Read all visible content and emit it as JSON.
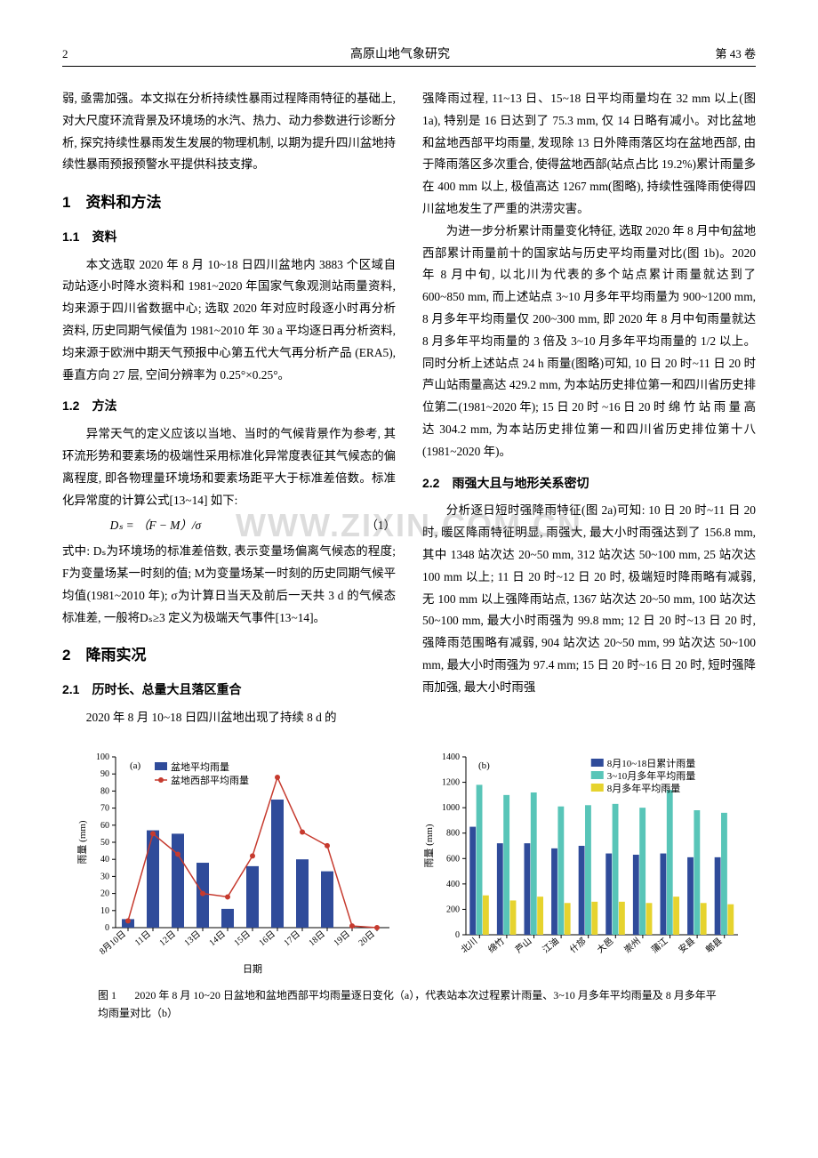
{
  "header": {
    "page_num": "2",
    "journal": "高原山地气象研究",
    "volume": "第 43 卷"
  },
  "left": {
    "p1": "弱, 亟需加强。本文拟在分析持续性暴雨过程降雨特征的基础上, 对大尺度环流背景及环境场的水汽、热力、动力参数进行诊断分析, 探究持续性暴雨发生发展的物理机制, 以期为提升四川盆地持续性暴雨预报预警水平提供科技支撑。",
    "s1_title": "1　资料和方法",
    "s11_title": "1.1　资料",
    "p2": "本文选取 2020 年 8 月 10~18 日四川盆地内 3883 个区域自动站逐小时降水资料和 1981~2020 年国家气象观测站雨量资料, 均来源于四川省数据中心; 选取 2020 年对应时段逐小时再分析资料, 历史同期气候值为 1981~2010 年 30 a 平均逐日再分析资料, 均来源于欧洲中期天气预报中心第五代大气再分析产品 (ERA5), 垂直方向 27 层, 空间分辨率为 0.25°×0.25°。",
    "s12_title": "1.2　方法",
    "p3": "异常天气的定义应该以当地、当时的气候背景作为参考, 其环流形势和要素场的极端性采用标准化异常度表征其气候态的偏离程度, 即各物理量环境场和要素场距平大于标准差倍数。标准化异常度的计算公式[13~14] 如下:",
    "formula_eq": "Dₛ = （F − M）/σ",
    "formula_num": "（1）",
    "p4": "式中: Dₛ为环境场的标准差倍数, 表示变量场偏离气候态的程度; F为变量场某一时刻的值; M为变量场某一时刻的历史同期气候平均值(1981~2010 年); σ为计算日当天及前后一天共 3 d 的气候态标准差, 一般将Dₛ≥3 定义为极端天气事件[13~14]。",
    "s2_title": "2　降雨实况",
    "s21_title": "2.1　历时长、总量大且落区重合",
    "p5": "2020 年 8 月 10~18 日四川盆地出现了持续 8 d 的"
  },
  "right": {
    "p1": "强降雨过程, 11~13 日、15~18 日平均雨量均在 32 mm 以上(图 1a), 特别是 16 日达到了 75.3 mm, 仅 14 日略有减小。对比盆地和盆地西部平均雨量, 发现除 13 日外降雨落区均在盆地西部, 由于降雨落区多次重合, 使得盆地西部(站点占比 19.2%)累计雨量多在 400 mm 以上, 极值高达 1267 mm(图略), 持续性强降雨使得四川盆地发生了严重的洪涝灾害。",
    "p2": "为进一步分析累计雨量变化特征, 选取 2020 年 8 月中旬盆地西部累计雨量前十的国家站与历史平均雨量对比(图 1b)。2020 年 8 月中旬, 以北川为代表的多个站点累计雨量就达到了 600~850 mm, 而上述站点 3~10 月多年平均雨量为 900~1200 mm, 8 月多年平均雨量仅 200~300 mm, 即 2020 年 8 月中旬雨量就达 8 月多年平均雨量的 3 倍及 3~10 月多年平均雨量的 1/2 以上。同时分析上述站点 24 h 雨量(图略)可知, 10 日 20 时~11 日 20 时芦山站雨量高达 429.2 mm, 为本站历史排位第一和四川省历史排位第二(1981~2020 年); 15 日 20 时 ~16 日 20 时 绵 竹 站 雨 量 高 达 304.2 mm, 为本站历史排位第一和四川省历史排位第十八(1981~2020 年)。",
    "s22_title": "2.2　雨强大且与地形关系密切",
    "p3": "分析逐日短时强降雨特征(图 2a)可知: 10 日 20 时~11 日 20 时, 暖区降雨特征明显, 雨强大, 最大小时雨强达到了 156.8 mm, 其中 1348 站次达 20~50 mm, 312 站次达 50~100 mm, 25 站次达 100 mm 以上; 11 日 20 时~12 日 20 时, 极端短时降雨略有减弱, 无 100 mm 以上强降雨站点, 1367 站次达 20~50 mm, 100 站次达 50~100 mm, 最大小时雨强为 99.8 mm; 12 日 20 时~13 日 20 时, 强降雨范围略有减弱, 904 站次达 20~50 mm, 99 站次达 50~100 mm, 最大小时雨强为 97.4 mm; 15 日 20 时~16 日 20 时, 短时强降雨加强, 最大小时雨强"
  },
  "chart_a": {
    "type": "bar_plus_line",
    "panel_label": "(a)",
    "categories": [
      "8月10日",
      "11日",
      "12日",
      "13日",
      "14日",
      "15日",
      "16日",
      "17日",
      "18日",
      "19日",
      "20日"
    ],
    "bar_values": [
      5,
      57,
      55,
      38,
      11,
      36,
      75,
      40,
      33,
      0,
      0
    ],
    "line_values": [
      4,
      55,
      43,
      20,
      18,
      42,
      88,
      56,
      48,
      1,
      0
    ],
    "bar_color": "#2f4b9a",
    "line_color": "#c63a2e",
    "marker_color": "#c63a2e",
    "ylabel": "雨量 (mm)",
    "xlabel": "日期",
    "ylim": [
      0,
      100
    ],
    "ytick_step": 10,
    "legend": {
      "bar": "盆地平均雨量",
      "line": "盆地西部平均雨量"
    },
    "background_color": "#ffffff",
    "axis_color": "#000000",
    "tick_fontsize": 10,
    "label_fontsize": 11
  },
  "chart_b": {
    "type": "grouped_bar",
    "panel_label": "(b)",
    "categories": [
      "北川",
      "绵竹",
      "芦山",
      "江油",
      "什邡",
      "大邑",
      "崇州",
      "蒲江",
      "安县",
      "郫县"
    ],
    "series": [
      {
        "name": "8月10~18日累计雨量",
        "color": "#2f4b9a",
        "values": [
          850,
          720,
          720,
          680,
          700,
          640,
          630,
          640,
          610,
          610
        ]
      },
      {
        "name": "3~10月多年平均雨量",
        "color": "#58c5b8",
        "values": [
          1180,
          1100,
          1120,
          1010,
          1020,
          1030,
          1000,
          1140,
          980,
          960
        ]
      },
      {
        "name": "8月多年平均雨量",
        "color": "#e6d32e",
        "values": [
          310,
          270,
          300,
          250,
          260,
          260,
          250,
          300,
          250,
          240
        ]
      }
    ],
    "ylabel": "雨量 (mm)",
    "ylim": [
      0,
      1400
    ],
    "ytick_step": 200,
    "background_color": "#ffffff",
    "axis_color": "#000000",
    "tick_fontsize": 10,
    "label_fontsize": 11
  },
  "caption": {
    "lead": "图 1",
    "text": "2020 年 8 月 10~20 日盆地和盆地西部平均雨量逐日变化（a），代表站本次过程累计雨量、3~10 月多年平均雨量及 8 月多年平均雨量对比（b）"
  },
  "watermark": "WWW.ZIXIN.COM.CN"
}
